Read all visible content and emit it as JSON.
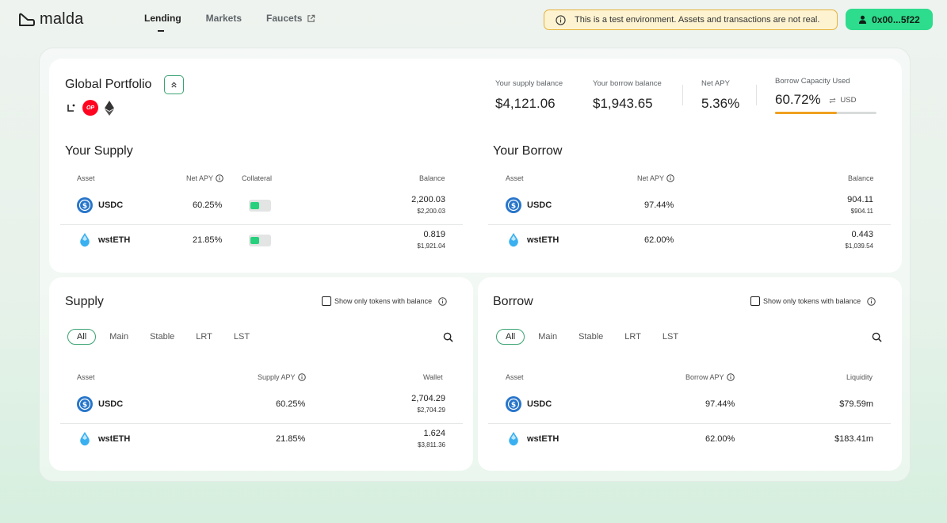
{
  "app": {
    "logo_text": "malda"
  },
  "nav": [
    {
      "label": "Lending",
      "active": true
    },
    {
      "label": "Markets",
      "active": false
    },
    {
      "label": "Faucets",
      "active": false
    }
  ],
  "notice": {
    "text": "This is a test environment. Assets and transactions are not real."
  },
  "wallet": {
    "label": "0x00...5f22"
  },
  "portfolio": {
    "title": "Global Portfolio",
    "chains": [
      "linea-icon",
      "optimism-icon",
      "ethereum-icon"
    ],
    "op_badge": "OP",
    "supply_balance": {
      "label": "Your supply balance",
      "value": "$4,121.06"
    },
    "borrow_balance": {
      "label": "Your borrow balance",
      "value": "$1,943.65"
    },
    "net_apy": {
      "label": "Net APY",
      "value": "5.36%"
    },
    "capacity": {
      "label": "Borrow Capacity Used",
      "value": "60.72%",
      "unit": "USD",
      "fraction": 0.6072
    }
  },
  "your_supply": {
    "title": "Your Supply",
    "columns": [
      "Asset",
      "Net APY",
      "Collateral",
      "Balance"
    ],
    "rows": [
      {
        "asset": "USDC",
        "apy": "60.25%",
        "collateral": true,
        "balance": "2,200.03",
        "balance_usd": "$2,200.03"
      },
      {
        "asset": "wstETH",
        "apy": "21.85%",
        "collateral": true,
        "balance": "0.819",
        "balance_usd": "$1,921.04"
      }
    ]
  },
  "your_borrow": {
    "title": "Your Borrow",
    "columns": [
      "Asset",
      "Net APY",
      "Balance"
    ],
    "rows": [
      {
        "asset": "USDC",
        "apy": "97.44%",
        "balance": "904.11",
        "balance_usd": "$904.11"
      },
      {
        "asset": "wstETH",
        "apy": "62.00%",
        "balance": "0.443",
        "balance_usd": "$1,039.54"
      }
    ]
  },
  "supply": {
    "title": "Supply",
    "checkbox_label": "Show only tokens with balance",
    "filters": [
      "All",
      "Main",
      "Stable",
      "LRT",
      "LST"
    ],
    "active_filter": "All",
    "columns": [
      "Asset",
      "Supply APY",
      "Wallet"
    ],
    "rows": [
      {
        "asset": "USDC",
        "apy": "60.25%",
        "wallet": "2,704.29",
        "wallet_usd": "$2,704.29"
      },
      {
        "asset": "wstETH",
        "apy": "21.85%",
        "wallet": "1.624",
        "wallet_usd": "$3,811.36"
      }
    ]
  },
  "borrow": {
    "title": "Borrow",
    "checkbox_label": "Show only tokens with balance",
    "filters": [
      "All",
      "Main",
      "Stable",
      "LRT",
      "LST"
    ],
    "active_filter": "All",
    "columns": [
      "Asset",
      "Borrow APY",
      "Liquidity"
    ],
    "rows": [
      {
        "asset": "USDC",
        "apy": "97.44%",
        "liquidity": "$79.59m"
      },
      {
        "asset": "wstETH",
        "apy": "62.00%",
        "liquidity": "$183.41m"
      }
    ]
  },
  "colors": {
    "accent": "#2ddc8c",
    "warning_bg": "#fdf3d1",
    "warning_border": "#e5b23b",
    "capacity_bar": "#f0a020",
    "usdc_blue": "#2775ca",
    "wsteth_blue": "#3ab0f0"
  }
}
